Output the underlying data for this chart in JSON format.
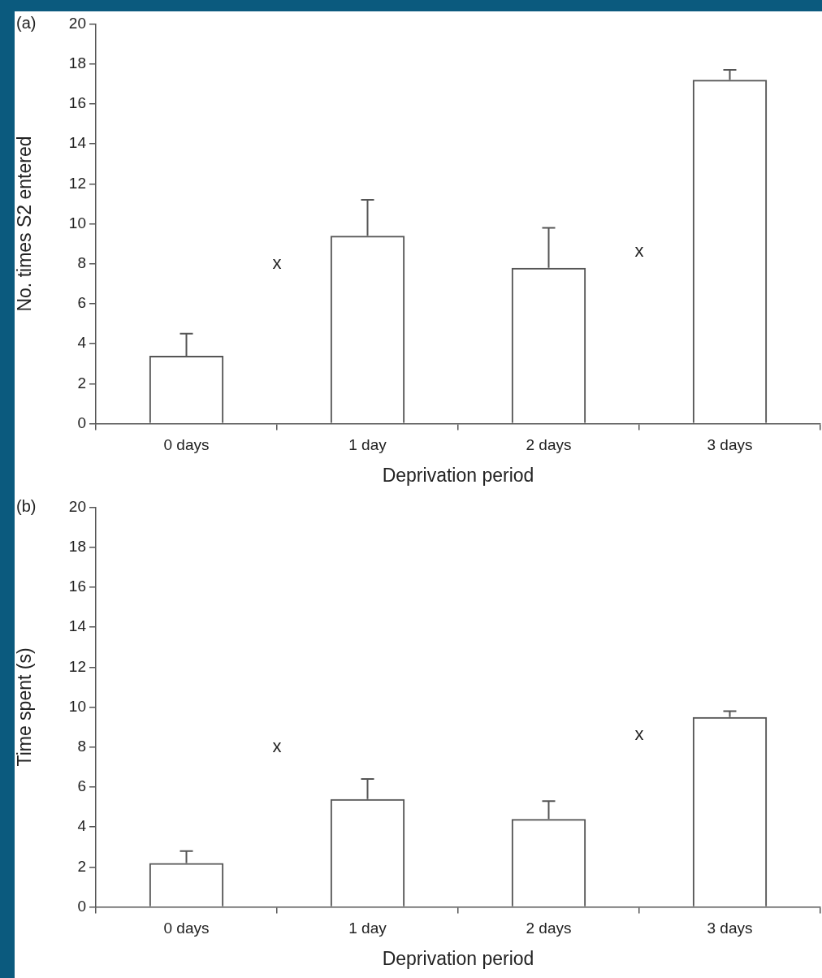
{
  "chart_data": [
    {
      "type": "bar",
      "title": "(a)",
      "xlabel": "Deprivation period",
      "ylabel": "No. times S2 entered",
      "categories": [
        "0 days",
        "1 day",
        "2 days",
        "3 days"
      ],
      "values": [
        3.4,
        9.4,
        7.8,
        17.2
      ],
      "color": "#555555",
      "errors": [
        [
          3.4,
          4.5
        ],
        [
          9.4,
          11.2
        ],
        [
          7.8,
          9.8
        ],
        [
          17.2,
          17.7
        ]
      ],
      "ylim": [
        0,
        20
      ],
      "yticks": [
        0,
        2,
        4,
        6,
        8,
        10,
        12,
        14,
        16,
        18,
        20
      ],
      "grid": false,
      "legend": false,
      "annotations": [
        "x",
        "x"
      ]
    },
    {
      "type": "bar",
      "title": "(b)",
      "xlabel": "Deprivation period",
      "ylabel": "Time spent (s)",
      "categories": [
        "0 days",
        "1 day",
        "2 days",
        "3 days"
      ],
      "values": [
        2.2,
        5.4,
        4.4,
        9.5
      ],
      "color": "#555555",
      "errors": [
        [
          2.2,
          2.8
        ],
        [
          5.4,
          6.4
        ],
        [
          4.4,
          5.3
        ],
        [
          9.5,
          9.8
        ]
      ],
      "ylim": [
        0,
        20
      ],
      "yticks": [
        0,
        2,
        4,
        6,
        8,
        10,
        12,
        14,
        16,
        18,
        20
      ],
      "grid": false,
      "legend": false,
      "annotations": [
        "x",
        "x"
      ]
    }
  ]
}
